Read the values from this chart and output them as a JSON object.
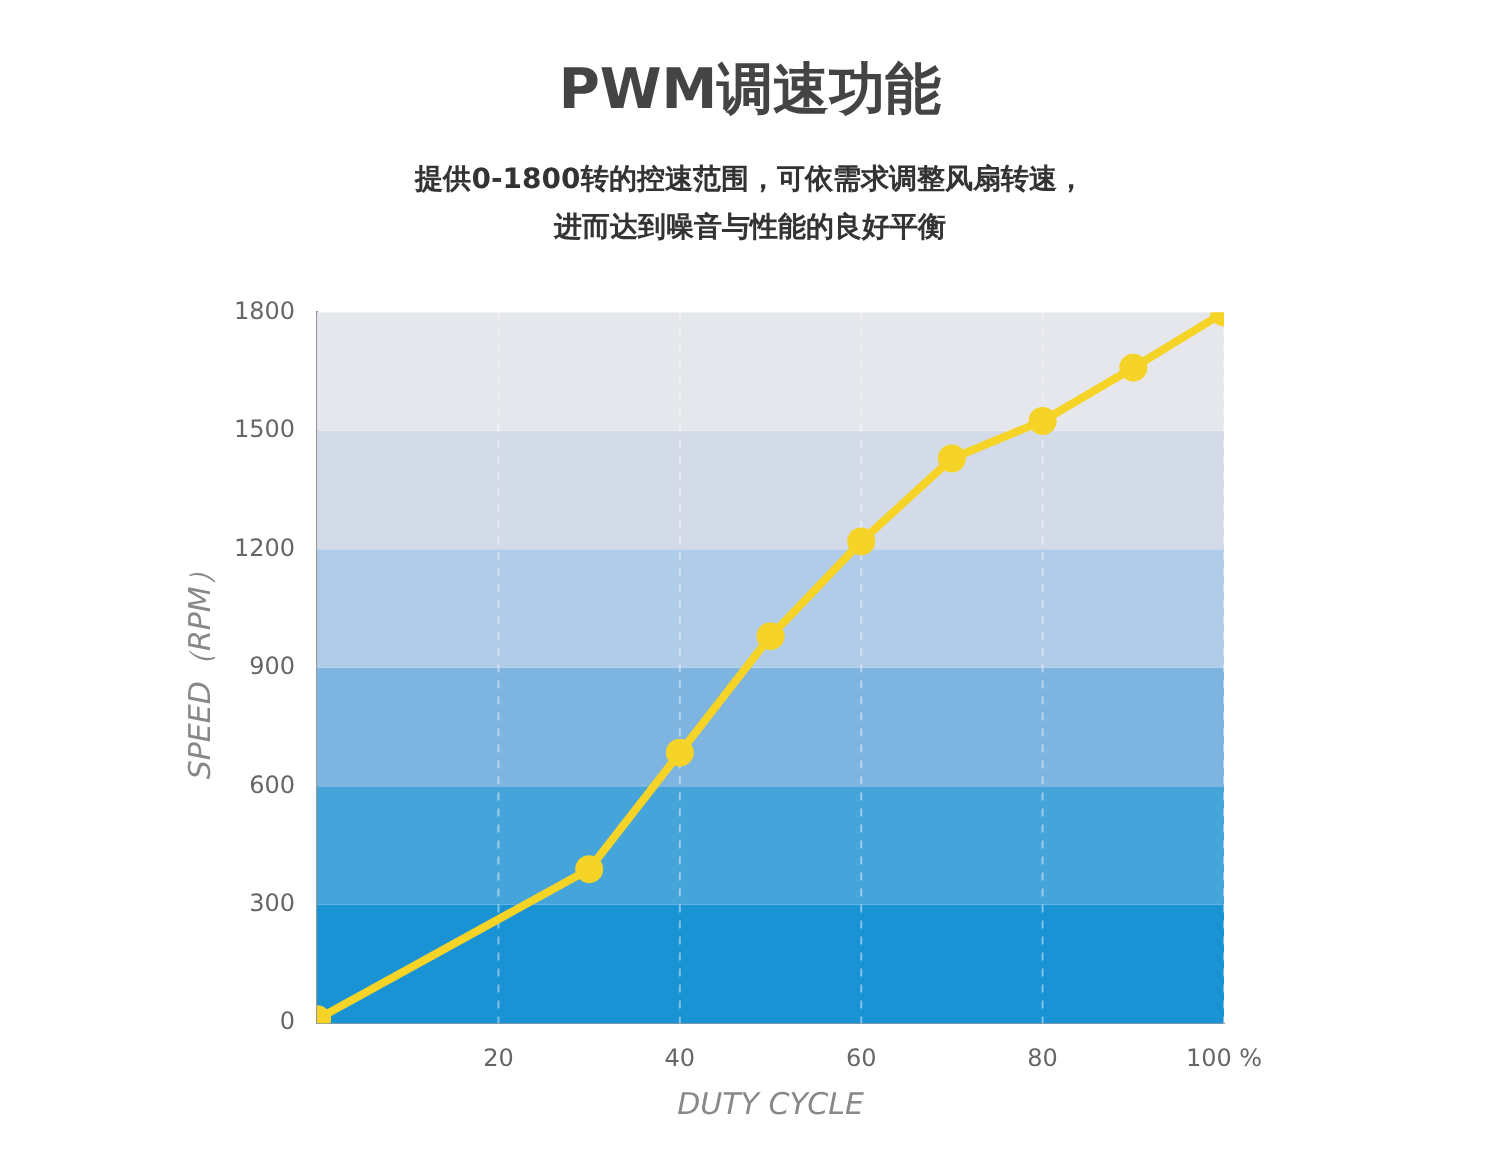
{
  "chart_data": {
    "type": "line",
    "title": "PWM调速功能",
    "subtitle": "提供0-1800转的控速范围，可依需求调整风扇转速，进而达到噪音与性能的良好平衡",
    "xlabel": "DUTY CYCLE",
    "ylabel": "SPEED（RPM）",
    "x": [
      0,
      30,
      40,
      50,
      60,
      70,
      80,
      90,
      100
    ],
    "series": [
      {
        "color": "#f5d327",
        "values": [
          10,
          390,
          685,
          980,
          1220,
          1430,
          1525,
          1660,
          1800
        ]
      }
    ],
    "xlim": [
      0,
      100
    ],
    "xticks": [
      20,
      40,
      60,
      80,
      {
        "value": 100,
        "label": "100 %"
      }
    ],
    "ylim": [
      0,
      1800
    ],
    "yticks": [
      0,
      300,
      600,
      900,
      1200,
      1500,
      1800
    ],
    "bands": [
      {
        "axis": "y",
        "from": 0,
        "to": 300,
        "color": "#1a93d4"
      },
      {
        "axis": "y",
        "from": 300,
        "to": 600,
        "color": "#45a4da"
      },
      {
        "axis": "y",
        "from": 600,
        "to": 900,
        "color": "#7db4e0"
      },
      {
        "axis": "y",
        "from": 900,
        "to": 1200,
        "color": "#b1cce8"
      },
      {
        "axis": "y",
        "from": 1200,
        "to": 1500,
        "color": "#d3dbe8"
      },
      {
        "axis": "y",
        "from": 1500,
        "to": 1800,
        "color": "#e6e7ec"
      }
    ],
    "grid": "x",
    "legend": false,
    "marker": "circle",
    "line_style": "solid"
  }
}
